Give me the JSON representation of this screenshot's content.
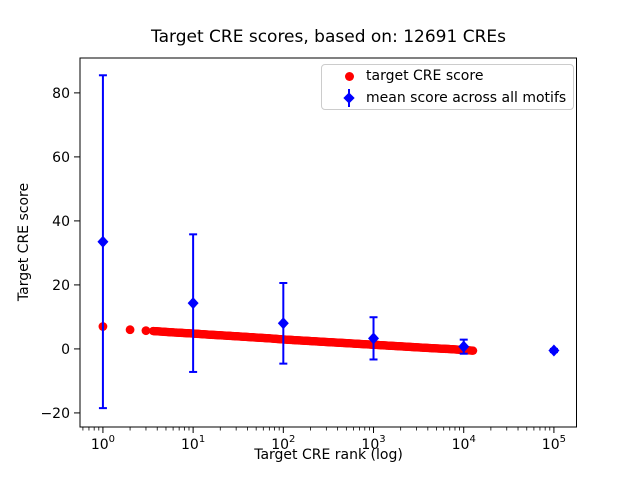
{
  "window": {
    "background": "#ffffff"
  },
  "colors": {
    "red_series": "#ff0000",
    "blue_series": "#0000ff",
    "axis": "#000000",
    "legend_border": "#cccccc"
  },
  "chart_data": {
    "type": "scatter",
    "title": "Target CRE scores, based on: 12691 CREs",
    "xlabel": "Target CRE rank (log)",
    "ylabel": "Target CRE score",
    "xscale": "log",
    "xlim": [
      0.557,
      178000
    ],
    "ylim": [
      -24.4,
      90.9
    ],
    "x_ticks": [
      {
        "value": 1,
        "base": "10",
        "exp": "0"
      },
      {
        "value": 10,
        "base": "10",
        "exp": "1"
      },
      {
        "value": 100,
        "base": "10",
        "exp": "2"
      },
      {
        "value": 1000,
        "base": "10",
        "exp": "3"
      },
      {
        "value": 10000,
        "base": "10",
        "exp": "4"
      },
      {
        "value": 100000,
        "base": "10",
        "exp": "5"
      }
    ],
    "y_ticks": [
      -20,
      0,
      20,
      40,
      60,
      80
    ],
    "grid": false,
    "legend_position": "upper right",
    "series": [
      {
        "name": "target CRE score",
        "marker": "circle",
        "color": "#ff0000",
        "note": "one dot per CRE rank 1..12691; control points sampled from plot",
        "points": [
          [
            1,
            7.0
          ],
          [
            2,
            6.0
          ],
          [
            3,
            5.7
          ],
          [
            4,
            5.5
          ],
          [
            5,
            5.3
          ],
          [
            6,
            5.15
          ],
          [
            7,
            5.05
          ],
          [
            8,
            4.95
          ],
          [
            10,
            4.8
          ],
          [
            15,
            4.45
          ],
          [
            20,
            4.25
          ],
          [
            30,
            3.95
          ],
          [
            50,
            3.55
          ],
          [
            70,
            3.3
          ],
          [
            100,
            2.95
          ],
          [
            150,
            2.65
          ],
          [
            200,
            2.45
          ],
          [
            300,
            2.15
          ],
          [
            500,
            1.8
          ],
          [
            700,
            1.55
          ],
          [
            1000,
            1.3
          ],
          [
            1500,
            1.0
          ],
          [
            2000,
            0.8
          ],
          [
            3000,
            0.5
          ],
          [
            5000,
            0.15
          ],
          [
            7000,
            -0.05
          ],
          [
            10000,
            -0.35
          ],
          [
            12691,
            -0.55
          ]
        ]
      },
      {
        "name": "mean score across all motifs",
        "marker": "diamond",
        "color": "#0000ff",
        "points": [
          {
            "x": 1,
            "mean": 33.5,
            "err": 52.0
          },
          {
            "x": 10,
            "mean": 14.3,
            "err": 21.5
          },
          {
            "x": 100,
            "mean": 8.0,
            "err": 12.6
          },
          {
            "x": 1000,
            "mean": 3.3,
            "err": 6.6
          },
          {
            "x": 10000,
            "mean": 0.7,
            "err": 2.2
          },
          {
            "x": 100000,
            "mean": -0.5,
            "err": 0.5
          }
        ]
      }
    ]
  }
}
